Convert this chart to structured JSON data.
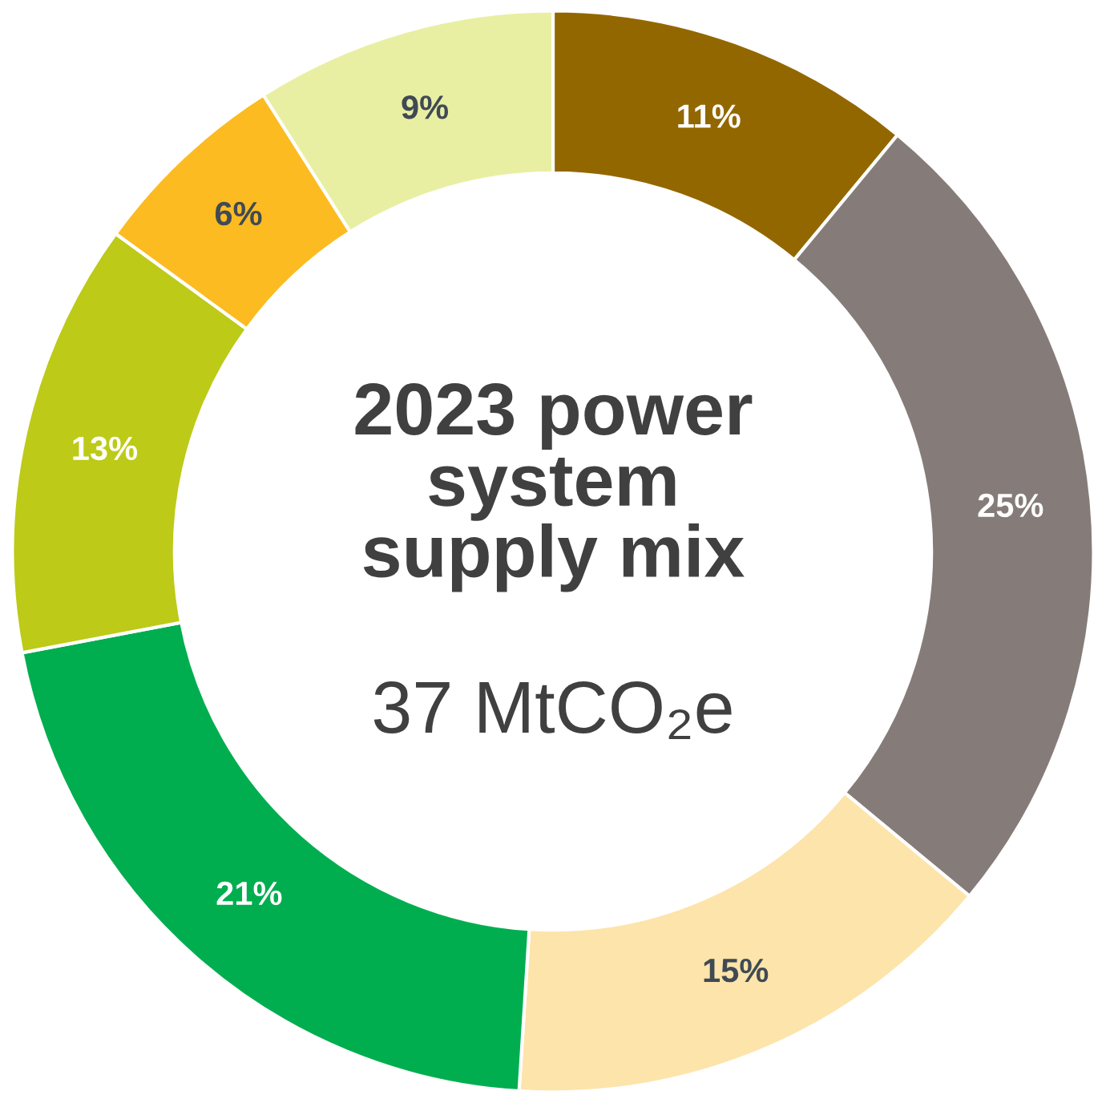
{
  "chart_data": {
    "type": "donut",
    "title": "2023 power system supply mix",
    "subtitle": "37 MtCO₂e",
    "categories": [
      null,
      null,
      null,
      null,
      null,
      null,
      null
    ],
    "values": [
      11,
      25,
      15,
      21,
      13,
      6,
      9
    ],
    "colors": [
      "#936700",
      "#857c79",
      "#fde4aa",
      "#00ae4f",
      "#bdca17",
      "#fcbb21",
      "#e9efa2"
    ],
    "value_labels": [
      "11%",
      "25%",
      "15%",
      "21%",
      "13%",
      "6%",
      "9%"
    ]
  }
}
